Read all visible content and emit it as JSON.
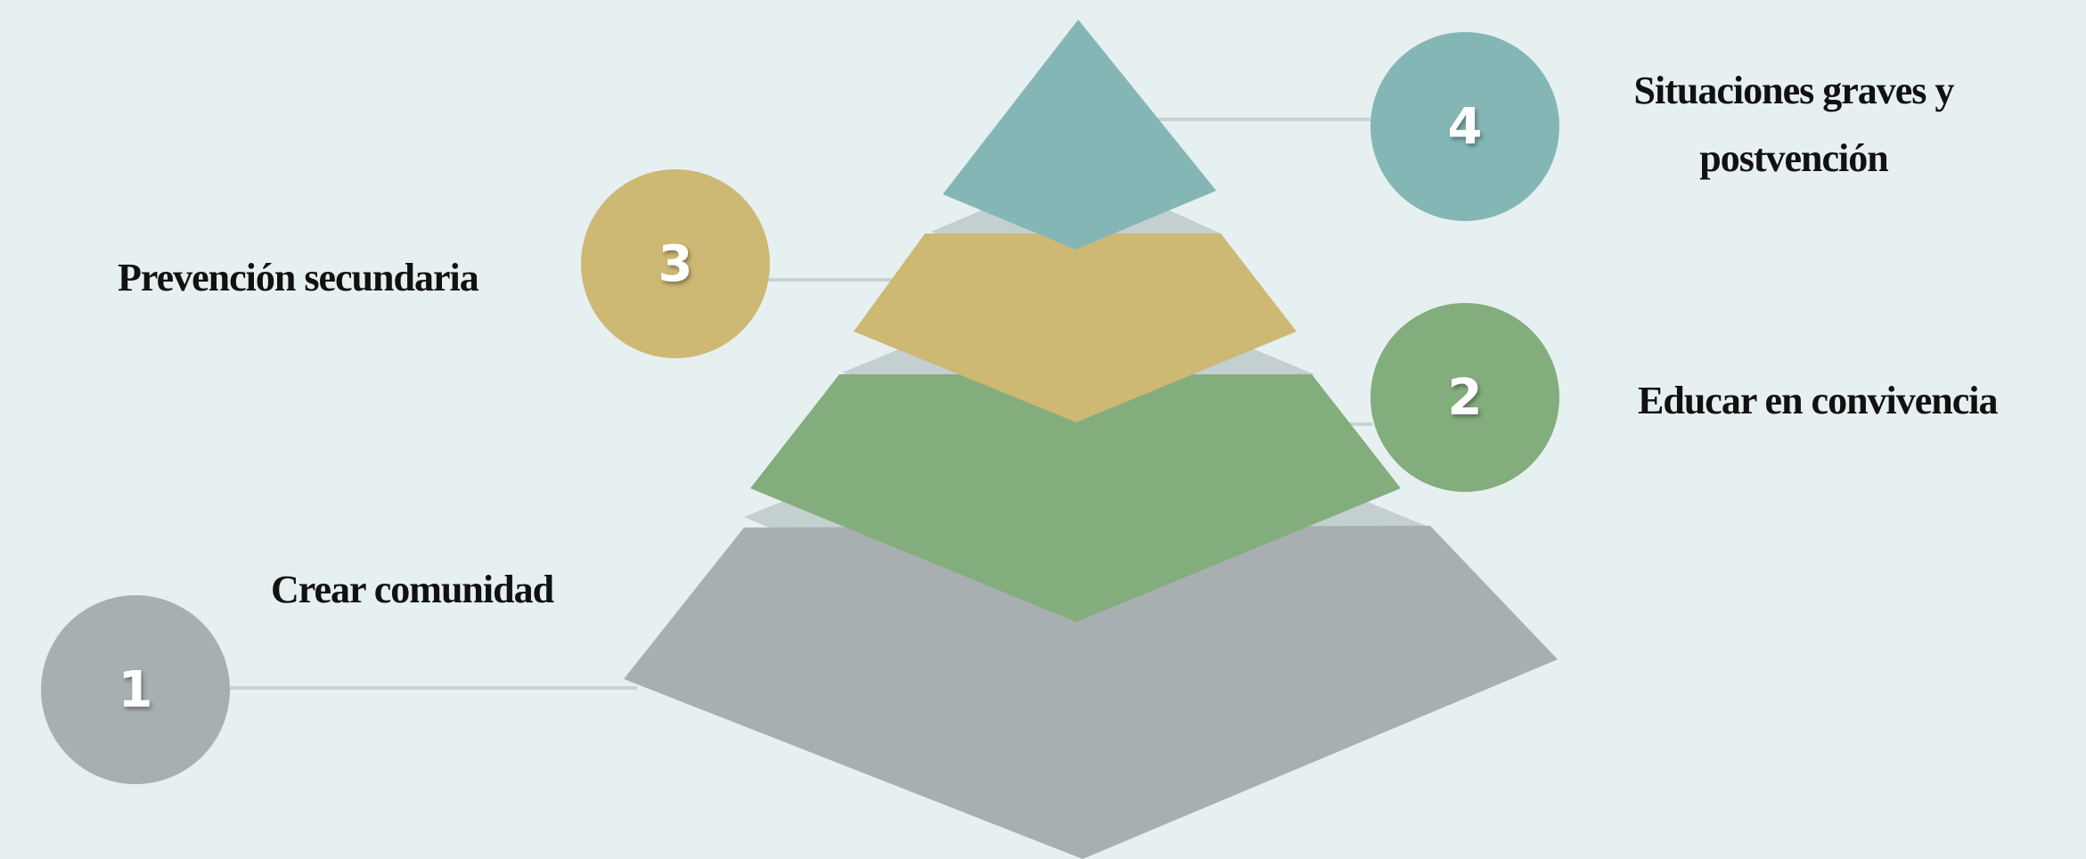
{
  "levels": [
    {
      "number": "1",
      "label": "Crear comunidad",
      "color": "#a7afb0"
    },
    {
      "number": "2",
      "label": "Educar en convivencia",
      "color": "#84ad7e"
    },
    {
      "number": "3",
      "label": "Prevención secundaria",
      "color": "#cdb874"
    },
    {
      "number": "4",
      "label": "Situaciones graves y postvención",
      "color": "#85b6b6"
    }
  ],
  "colors": {
    "background": "#e7f0f1",
    "separator": "#c4cfd0",
    "connector": "#c9d3d4"
  }
}
